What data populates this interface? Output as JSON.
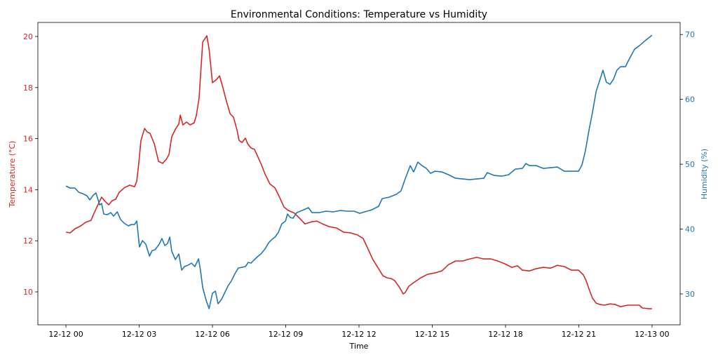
{
  "chart_data": {
    "type": "line",
    "title": "Environmental Conditions: Temperature vs Humidity",
    "xlabel": "Time",
    "x_units": "hours since 12-12 00",
    "xlim": [
      -1.15,
      25.15
    ],
    "x_ticks": [
      {
        "value": 0,
        "label": "12-12 00"
      },
      {
        "value": 3,
        "label": "12-12 03"
      },
      {
        "value": 6,
        "label": "12-12 06"
      },
      {
        "value": 9,
        "label": "12-12 09"
      },
      {
        "value": 12,
        "label": "12-12 12"
      },
      {
        "value": 15,
        "label": "12-12 15"
      },
      {
        "value": 18,
        "label": "12-12 18"
      },
      {
        "value": 21,
        "label": "12-12 21"
      },
      {
        "value": 24,
        "label": "12-13 00"
      }
    ],
    "grid": false,
    "legend": "none",
    "left_axis": {
      "label": "Temperature (°C)",
      "color": "#d62728",
      "ylim": [
        8.71,
        20.55
      ],
      "ticks": [
        10,
        12,
        14,
        16,
        18,
        20
      ]
    },
    "right_axis": {
      "label": "Humidity (%)",
      "color": "#1f77b4",
      "ylim": [
        25.24,
        71.86
      ],
      "ticks": [
        30,
        40,
        50,
        60,
        70
      ]
    },
    "series": [
      {
        "name": "Temperature",
        "axis": "left",
        "color": "#d62728",
        "points": [
          [
            0,
            12.34
          ],
          [
            0.17,
            12.31
          ],
          [
            0.37,
            12.47
          ],
          [
            0.6,
            12.58
          ],
          [
            0.8,
            12.72
          ],
          [
            1.03,
            12.8
          ],
          [
            1.15,
            13.08
          ],
          [
            1.32,
            13.43
          ],
          [
            1.46,
            13.71
          ],
          [
            1.61,
            13.54
          ],
          [
            1.75,
            13.41
          ],
          [
            1.89,
            13.57
          ],
          [
            2.04,
            13.63
          ],
          [
            2.18,
            13.9
          ],
          [
            2.41,
            14.09
          ],
          [
            2.61,
            14.18
          ],
          [
            2.81,
            14.12
          ],
          [
            2.9,
            14.34
          ],
          [
            2.99,
            15.11
          ],
          [
            3.07,
            15.93
          ],
          [
            3.22,
            16.4
          ],
          [
            3.33,
            16.26
          ],
          [
            3.44,
            16.21
          ],
          [
            3.62,
            15.8
          ],
          [
            3.79,
            15.11
          ],
          [
            3.96,
            15.03
          ],
          [
            4.11,
            15.19
          ],
          [
            4.22,
            15.38
          ],
          [
            4.33,
            16.07
          ],
          [
            4.48,
            16.37
          ],
          [
            4.62,
            16.57
          ],
          [
            4.68,
            16.92
          ],
          [
            4.79,
            16.54
          ],
          [
            4.94,
            16.65
          ],
          [
            5.08,
            16.54
          ],
          [
            5.25,
            16.62
          ],
          [
            5.34,
            16.9
          ],
          [
            5.45,
            17.58
          ],
          [
            5.6,
            19.78
          ],
          [
            5.77,
            20.03
          ],
          [
            5.86,
            19.51
          ],
          [
            6.0,
            18.19
          ],
          [
            6.17,
            18.32
          ],
          [
            6.29,
            18.46
          ],
          [
            6.43,
            17.99
          ],
          [
            6.54,
            17.58
          ],
          [
            6.72,
            16.98
          ],
          [
            6.86,
            16.84
          ],
          [
            7.0,
            16.35
          ],
          [
            7.09,
            15.93
          ],
          [
            7.21,
            15.85
          ],
          [
            7.35,
            16.02
          ],
          [
            7.44,
            15.8
          ],
          [
            7.58,
            15.63
          ],
          [
            7.72,
            15.58
          ],
          [
            7.84,
            15.33
          ],
          [
            8.01,
            14.97
          ],
          [
            8.15,
            14.62
          ],
          [
            8.35,
            14.23
          ],
          [
            8.56,
            14.07
          ],
          [
            8.73,
            13.74
          ],
          [
            8.93,
            13.32
          ],
          [
            9.1,
            13.19
          ],
          [
            9.36,
            13.08
          ],
          [
            9.59,
            12.86
          ],
          [
            9.79,
            12.66
          ],
          [
            10.08,
            12.75
          ],
          [
            10.28,
            12.77
          ],
          [
            10.51,
            12.66
          ],
          [
            10.79,
            12.55
          ],
          [
            11.08,
            12.5
          ],
          [
            11.37,
            12.34
          ],
          [
            11.66,
            12.31
          ],
          [
            11.94,
            12.23
          ],
          [
            12.17,
            12.09
          ],
          [
            12.37,
            11.68
          ],
          [
            12.57,
            11.26
          ],
          [
            12.8,
            10.91
          ],
          [
            12.98,
            10.63
          ],
          [
            13.15,
            10.55
          ],
          [
            13.32,
            10.52
          ],
          [
            13.46,
            10.44
          ],
          [
            13.67,
            10.16
          ],
          [
            13.81,
            9.92
          ],
          [
            13.89,
            9.97
          ],
          [
            14.04,
            10.22
          ],
          [
            14.24,
            10.36
          ],
          [
            14.53,
            10.55
          ],
          [
            14.81,
            10.69
          ],
          [
            15.1,
            10.74
          ],
          [
            15.39,
            10.82
          ],
          [
            15.67,
            11.07
          ],
          [
            15.96,
            11.21
          ],
          [
            16.25,
            11.21
          ],
          [
            16.53,
            11.29
          ],
          [
            16.82,
            11.35
          ],
          [
            17.11,
            11.29
          ],
          [
            17.4,
            11.29
          ],
          [
            17.68,
            11.21
          ],
          [
            17.97,
            11.1
          ],
          [
            18.26,
            10.96
          ],
          [
            18.49,
            11.02
          ],
          [
            18.69,
            10.85
          ],
          [
            18.97,
            10.82
          ],
          [
            19.26,
            10.91
          ],
          [
            19.55,
            10.96
          ],
          [
            19.84,
            10.93
          ],
          [
            20.12,
            11.04
          ],
          [
            20.41,
            10.99
          ],
          [
            20.7,
            10.85
          ],
          [
            20.99,
            10.85
          ],
          [
            21.19,
            10.66
          ],
          [
            21.3,
            10.44
          ],
          [
            21.42,
            10.11
          ],
          [
            21.56,
            9.75
          ],
          [
            21.71,
            9.56
          ],
          [
            21.85,
            9.51
          ],
          [
            22.05,
            9.48
          ],
          [
            22.28,
            9.53
          ],
          [
            22.48,
            9.51
          ],
          [
            22.71,
            9.42
          ],
          [
            23.0,
            9.48
          ],
          [
            23.28,
            9.48
          ],
          [
            23.48,
            9.48
          ],
          [
            23.6,
            9.37
          ],
          [
            23.89,
            9.34
          ],
          [
            24.0,
            9.34
          ]
        ]
      },
      {
        "name": "Humidity",
        "axis": "right",
        "color": "#1f77b4",
        "points": [
          [
            0,
            46.65
          ],
          [
            0.17,
            46.32
          ],
          [
            0.37,
            46.32
          ],
          [
            0.52,
            45.68
          ],
          [
            0.69,
            45.46
          ],
          [
            0.86,
            45.14
          ],
          [
            0.98,
            44.49
          ],
          [
            1.12,
            45.24
          ],
          [
            1.23,
            45.57
          ],
          [
            1.38,
            43.73
          ],
          [
            1.46,
            43.95
          ],
          [
            1.55,
            42.32
          ],
          [
            1.69,
            42.22
          ],
          [
            1.84,
            42.54
          ],
          [
            1.95,
            42.0
          ],
          [
            2.1,
            42.65
          ],
          [
            2.24,
            41.46
          ],
          [
            2.38,
            40.92
          ],
          [
            2.56,
            40.49
          ],
          [
            2.67,
            40.7
          ],
          [
            2.81,
            40.7
          ],
          [
            2.9,
            41.24
          ],
          [
            3.01,
            37.24
          ],
          [
            3.13,
            38.22
          ],
          [
            3.27,
            37.68
          ],
          [
            3.42,
            35.84
          ],
          [
            3.53,
            36.7
          ],
          [
            3.65,
            36.81
          ],
          [
            3.82,
            37.68
          ],
          [
            3.93,
            38.54
          ],
          [
            4.05,
            37.46
          ],
          [
            4.16,
            37.78
          ],
          [
            4.25,
            38.76
          ],
          [
            4.33,
            36.59
          ],
          [
            4.48,
            35.3
          ],
          [
            4.62,
            36.16
          ],
          [
            4.74,
            33.68
          ],
          [
            4.85,
            34.22
          ],
          [
            5.0,
            34.43
          ],
          [
            5.14,
            34.76
          ],
          [
            5.28,
            34.22
          ],
          [
            5.43,
            35.41
          ],
          [
            5.51,
            33.57
          ],
          [
            5.6,
            30.97
          ],
          [
            5.74,
            29.03
          ],
          [
            5.86,
            27.73
          ],
          [
            6.0,
            30.11
          ],
          [
            6.12,
            30.43
          ],
          [
            6.23,
            28.49
          ],
          [
            6.37,
            29.14
          ],
          [
            6.49,
            30.11
          ],
          [
            6.63,
            31.19
          ],
          [
            6.78,
            32.05
          ],
          [
            6.92,
            33.14
          ],
          [
            7.06,
            34.0
          ],
          [
            7.21,
            34.11
          ],
          [
            7.35,
            34.22
          ],
          [
            7.46,
            34.86
          ],
          [
            7.58,
            34.76
          ],
          [
            7.69,
            35.19
          ],
          [
            7.87,
            35.84
          ],
          [
            7.98,
            36.16
          ],
          [
            8.15,
            36.92
          ],
          [
            8.3,
            37.89
          ],
          [
            8.44,
            38.43
          ],
          [
            8.56,
            38.76
          ],
          [
            8.7,
            39.51
          ],
          [
            8.84,
            40.81
          ],
          [
            8.99,
            41.24
          ],
          [
            9.07,
            42.32
          ],
          [
            9.19,
            41.78
          ],
          [
            9.3,
            41.68
          ],
          [
            9.45,
            42.54
          ],
          [
            9.59,
            42.76
          ],
          [
            9.73,
            42.97
          ],
          [
            9.93,
            43.3
          ],
          [
            10.08,
            42.54
          ],
          [
            10.36,
            42.54
          ],
          [
            10.65,
            42.76
          ],
          [
            10.94,
            42.65
          ],
          [
            11.23,
            42.86
          ],
          [
            11.51,
            42.76
          ],
          [
            11.8,
            42.76
          ],
          [
            12.03,
            42.43
          ],
          [
            12.23,
            42.65
          ],
          [
            12.52,
            42.97
          ],
          [
            12.8,
            43.51
          ],
          [
            12.95,
            44.7
          ],
          [
            13.23,
            44.92
          ],
          [
            13.52,
            45.35
          ],
          [
            13.72,
            45.89
          ],
          [
            13.89,
            47.73
          ],
          [
            14.1,
            49.78
          ],
          [
            14.24,
            48.81
          ],
          [
            14.41,
            50.32
          ],
          [
            14.58,
            49.78
          ],
          [
            14.76,
            49.35
          ],
          [
            14.93,
            48.59
          ],
          [
            15.1,
            48.92
          ],
          [
            15.39,
            48.81
          ],
          [
            15.67,
            48.38
          ],
          [
            15.96,
            47.84
          ],
          [
            16.25,
            47.73
          ],
          [
            16.53,
            47.62
          ],
          [
            16.82,
            47.73
          ],
          [
            17.11,
            47.84
          ],
          [
            17.25,
            48.7
          ],
          [
            17.54,
            48.27
          ],
          [
            17.83,
            48.16
          ],
          [
            18.12,
            48.38
          ],
          [
            18.4,
            49.24
          ],
          [
            18.69,
            49.35
          ],
          [
            18.83,
            50.11
          ],
          [
            18.98,
            49.78
          ],
          [
            19.26,
            49.78
          ],
          [
            19.55,
            49.35
          ],
          [
            19.84,
            49.46
          ],
          [
            20.12,
            49.57
          ],
          [
            20.41,
            48.92
          ],
          [
            20.7,
            48.92
          ],
          [
            20.99,
            48.92
          ],
          [
            21.13,
            49.89
          ],
          [
            21.27,
            52.05
          ],
          [
            21.42,
            55.3
          ],
          [
            21.56,
            58.0
          ],
          [
            21.71,
            61.24
          ],
          [
            21.88,
            63.19
          ],
          [
            21.99,
            64.49
          ],
          [
            22.13,
            62.65
          ],
          [
            22.28,
            62.32
          ],
          [
            22.42,
            63.08
          ],
          [
            22.56,
            64.49
          ],
          [
            22.71,
            65.03
          ],
          [
            22.91,
            65.03
          ],
          [
            23.05,
            66.11
          ],
          [
            23.28,
            67.73
          ],
          [
            23.48,
            68.27
          ],
          [
            23.71,
            69.03
          ],
          [
            24.0,
            69.89
          ]
        ]
      }
    ]
  }
}
